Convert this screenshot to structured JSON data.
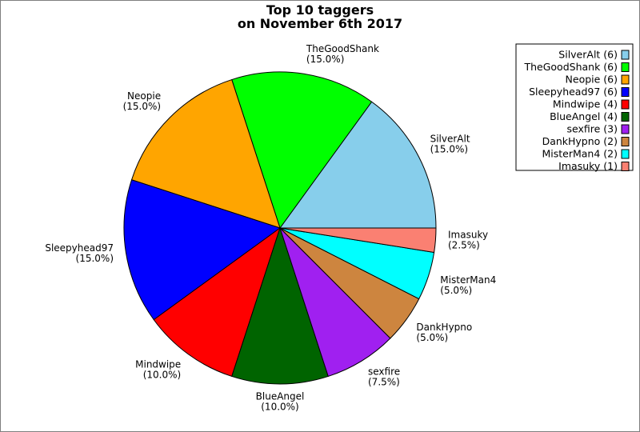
{
  "chart_data": {
    "type": "pie",
    "title": [
      "Top 10 taggers",
      "on November 6th 2017"
    ],
    "slices": [
      {
        "label": "SilverAlt",
        "value": 6,
        "percent": "(15.0%)",
        "legend": "SilverAlt (6)",
        "color": "#87ceeb"
      },
      {
        "label": "TheGoodShank",
        "value": 6,
        "percent": "(15.0%)",
        "legend": "TheGoodShank (6)",
        "color": "#00ff00"
      },
      {
        "label": "Neopie",
        "value": 6,
        "percent": "(15.0%)",
        "legend": "Neopie (6)",
        "color": "#ffa500"
      },
      {
        "label": "Sleepyhead97",
        "value": 6,
        "percent": "(15.0%)",
        "legend": "Sleepyhead97 (6)",
        "color": "#0000ff"
      },
      {
        "label": "Mindwipe",
        "value": 4,
        "percent": "(10.0%)",
        "legend": "Mindwipe (4)",
        "color": "#ff0000"
      },
      {
        "label": "BlueAngel",
        "value": 4,
        "percent": "(10.0%)",
        "legend": "BlueAngel (4)",
        "color": "#006400"
      },
      {
        "label": "sexfire",
        "value": 3,
        "percent": "(7.5%)",
        "legend": "sexfire (3)",
        "color": "#a020f0"
      },
      {
        "label": "DankHypno",
        "value": 2,
        "percent": "(5.0%)",
        "legend": "DankHypno (2)",
        "color": "#cd853f"
      },
      {
        "label": "MisterMan4",
        "value": 2,
        "percent": "(5.0%)",
        "legend": "MisterMan4 (2)",
        "color": "#00ffff"
      },
      {
        "label": "Imasuky",
        "value": 1,
        "percent": "(2.5%)",
        "legend": "Imasuky (1)",
        "color": "#fa8072"
      }
    ],
    "start_angle": "east",
    "direction": "counterclockwise",
    "legend_position": "top-right"
  }
}
